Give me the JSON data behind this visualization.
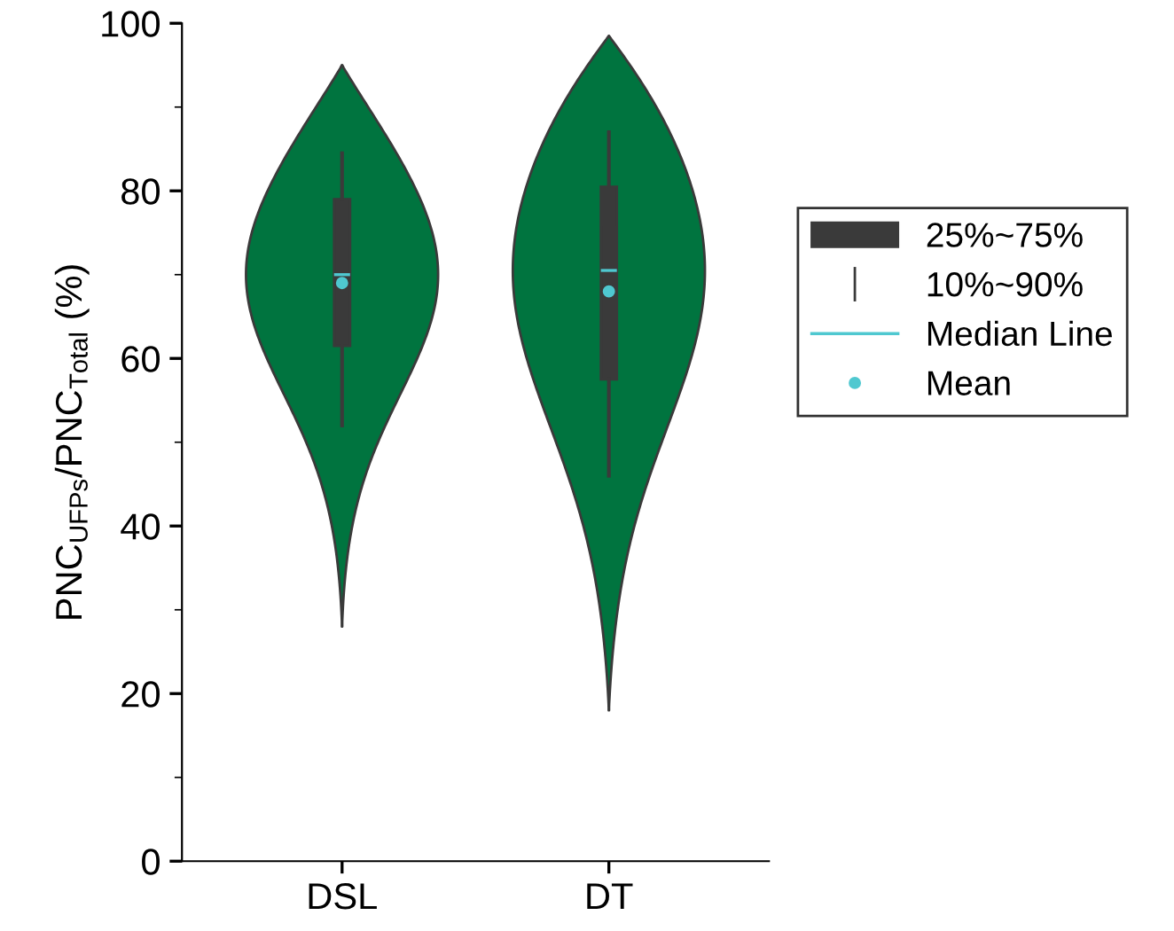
{
  "chart_data": {
    "type": "box",
    "ylabel": "PNC$_{UFPs}$/PNC$_{Total}$ (%)",
    "categories": [
      "DSL",
      "DT"
    ],
    "ylim": [
      0,
      100
    ],
    "yticks": [
      0,
      20,
      40,
      60,
      80,
      100
    ],
    "legend": "right",
    "grid": false,
    "colors": [
      "#00743f",
      "#00743f"
    ],
    "series": [
      {
        "name": "25%~75%",
        "color": "#3a3a3a",
        "boxes": [
          {
            "low": 52,
            "q1": 61.5,
            "median": 70,
            "q3": 79,
            "high": 84.5,
            "mean": 69
          },
          {
            "low": 46,
            "q1": 57.5,
            "median": 70.5,
            "q3": 80.5,
            "high": 87,
            "mean": 68
          }
        ]
      }
    ],
    "annotations": [
      "10%~90%",
      "Median Line",
      "Mean"
    ]
  }
}
